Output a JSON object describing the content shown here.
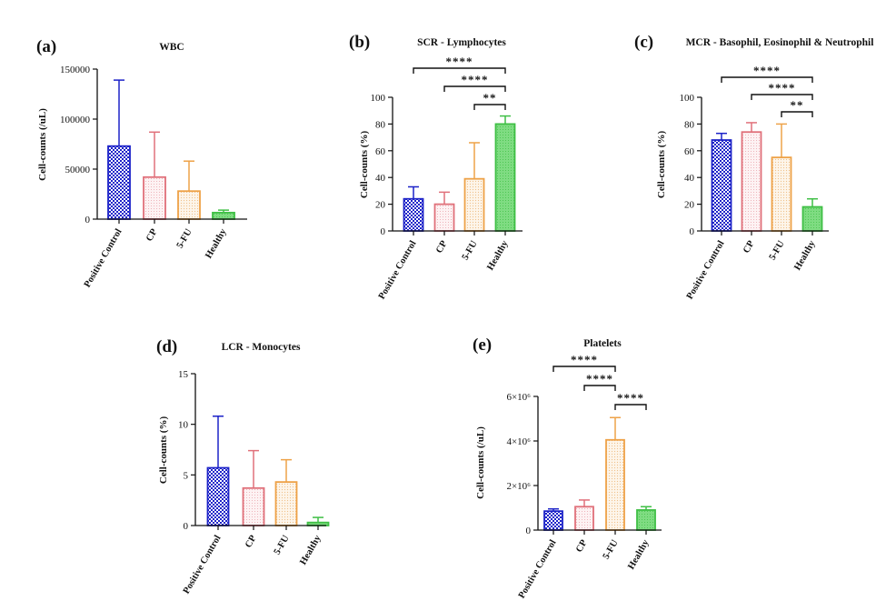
{
  "figure": {
    "colors": {
      "positive_control": "#1c22c8",
      "cp": "#e0707a",
      "five_fu": "#eea248",
      "healthy": "#3fbf45",
      "axis": "#111111"
    }
  },
  "chart_data": [
    {
      "id": "a",
      "letter": "(a)",
      "type": "bar",
      "title": "WBC",
      "ylabel": "Cell-counts (/uL)",
      "categories": [
        "Positive Control",
        "CP",
        "5-FU",
        "Healthy"
      ],
      "values": [
        73000,
        42000,
        28000,
        6500
      ],
      "errors": [
        66000,
        45000,
        30000,
        2500
      ],
      "ylim": [
        0,
        150000
      ],
      "yticks": [
        0,
        50000,
        100000,
        150000
      ],
      "ytick_labels": [
        "0",
        "50000",
        "100000",
        "150000"
      ],
      "significance": []
    },
    {
      "id": "b",
      "letter": "(b)",
      "type": "bar",
      "title": "SCR - Lymphocytes",
      "ylabel": "Cell-counts (%)",
      "categories": [
        "Positive Control",
        "CP",
        "5-FU",
        "Healthy"
      ],
      "values": [
        24,
        20,
        39,
        80
      ],
      "errors": [
        9,
        9,
        27,
        6
      ],
      "ylim": [
        0,
        100
      ],
      "yticks": [
        0,
        20,
        40,
        60,
        80,
        100
      ],
      "ytick_labels": [
        "0",
        "20",
        "40",
        "60",
        "80",
        "100"
      ],
      "significance": [
        {
          "from": 0,
          "to": 3,
          "label": "****"
        },
        {
          "from": 1,
          "to": 3,
          "label": "****"
        },
        {
          "from": 2,
          "to": 3,
          "label": "**"
        }
      ]
    },
    {
      "id": "c",
      "letter": "(c)",
      "type": "bar",
      "title": "MCR - Basophil, Eosinophil & Neutrophil",
      "ylabel": "Cell-counts (%)",
      "categories": [
        "Positive Control",
        "CP",
        "5-FU",
        "Healthy"
      ],
      "values": [
        68,
        74,
        55,
        18
      ],
      "errors": [
        5,
        7,
        25,
        6
      ],
      "ylim": [
        0,
        100
      ],
      "yticks": [
        0,
        20,
        40,
        60,
        80,
        100
      ],
      "ytick_labels": [
        "0",
        "20",
        "40",
        "60",
        "80",
        "100"
      ],
      "significance": [
        {
          "from": 0,
          "to": 3,
          "label": "****"
        },
        {
          "from": 1,
          "to": 3,
          "label": "****"
        },
        {
          "from": 2,
          "to": 3,
          "label": "**"
        }
      ]
    },
    {
      "id": "d",
      "letter": "(d)",
      "type": "bar",
      "title": "LCR - Monocytes",
      "ylabel": "Cell-counts (%)",
      "categories": [
        "Positive Control",
        "CP",
        "5-FU",
        "Healthy"
      ],
      "values": [
        5.7,
        3.7,
        4.3,
        0.3
      ],
      "errors": [
        5.1,
        3.7,
        2.2,
        0.5
      ],
      "ylim": [
        0,
        15
      ],
      "yticks": [
        0,
        5,
        10,
        15
      ],
      "ytick_labels": [
        "0",
        "5",
        "10",
        "15"
      ],
      "significance": []
    },
    {
      "id": "e",
      "letter": "(e)",
      "type": "bar",
      "title": "Platelets",
      "ylabel": "Cell-counts (/uL)",
      "categories": [
        "Positive Control",
        "CP",
        "5-FU",
        "Healthy"
      ],
      "values": [
        850000,
        1050000,
        4050000,
        900000
      ],
      "errors": [
        100000,
        300000,
        1000000,
        150000
      ],
      "ylim": [
        0,
        6000000
      ],
      "yticks": [
        0,
        2000000,
        4000000,
        6000000
      ],
      "ytick_labels": [
        "0",
        "2×10⁶",
        "4×10⁶",
        "6×10⁶"
      ],
      "significance": [
        {
          "from": 0,
          "to": 2,
          "label": "****"
        },
        {
          "from": 1,
          "to": 2,
          "label": "****"
        },
        {
          "from": 2,
          "to": 3,
          "label": "****"
        }
      ]
    }
  ]
}
